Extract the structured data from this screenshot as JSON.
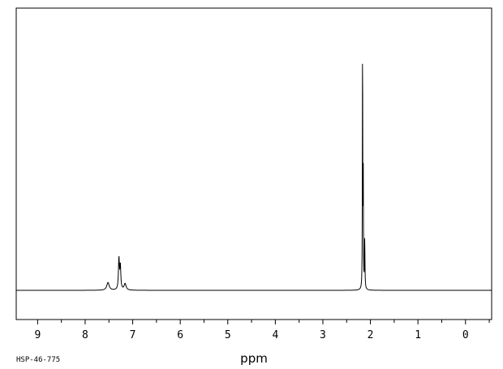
{
  "chart_data": {
    "type": "line",
    "title": "",
    "xlabel": "ppm",
    "ylabel": "",
    "x_reversed": true,
    "xlim": [
      9.45,
      -0.55
    ],
    "ylim": [
      -0.1,
      1.0
    ],
    "grid": false,
    "legend": "none",
    "xticks": [
      9,
      8,
      7,
      6,
      5,
      4,
      3,
      2,
      1,
      0
    ],
    "xtick_labels": [
      "9",
      "8",
      "7",
      "6",
      "5",
      "4",
      "3",
      "2",
      "1",
      "0"
    ],
    "peaks": [
      {
        "shift": 7.52,
        "intensity": 0.03,
        "width": 0.03
      },
      {
        "shift": 7.29,
        "intensity": 0.12,
        "width": 0.012
      },
      {
        "shift": 7.26,
        "intensity": 0.09,
        "width": 0.012
      },
      {
        "shift": 7.16,
        "intensity": 0.025,
        "width": 0.025
      },
      {
        "shift": 2.165,
        "intensity": 1.0,
        "width": 0.004
      },
      {
        "shift": 2.15,
        "intensity": 0.42,
        "width": 0.004
      },
      {
        "shift": 2.12,
        "intensity": 0.19,
        "width": 0.006
      }
    ],
    "annotations": [
      "HSP-46-775"
    ]
  },
  "colors": {
    "line": "#000000",
    "background": "#ffffff"
  }
}
